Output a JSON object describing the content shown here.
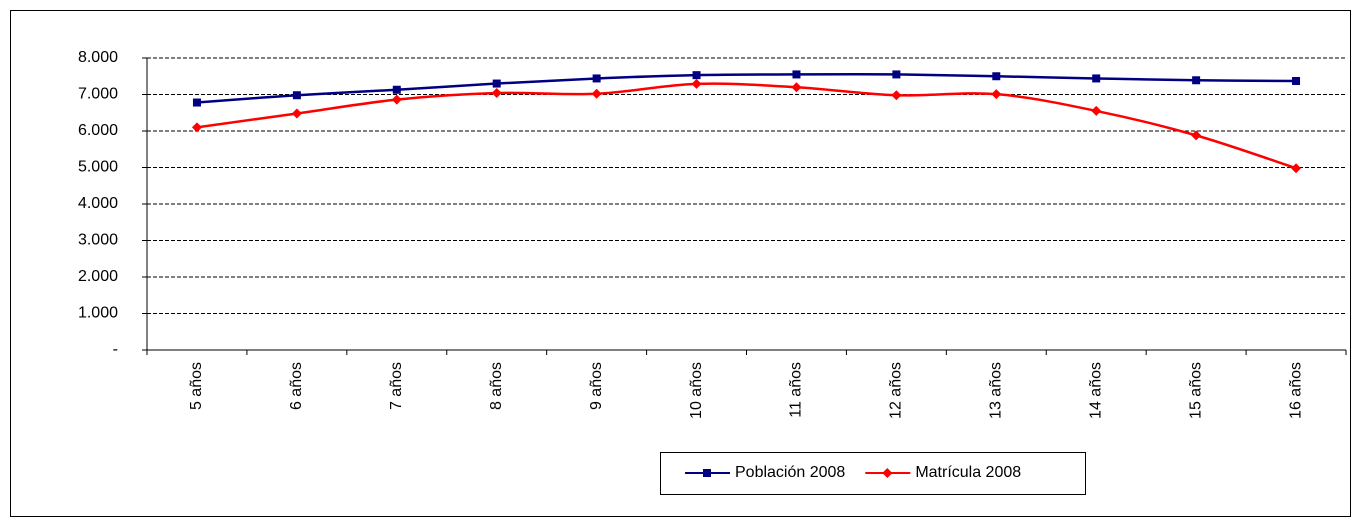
{
  "chart_data": {
    "type": "line",
    "categories": [
      "5 años",
      "6 años",
      "7 años",
      "8 años",
      "9 años",
      "10 años",
      "11 años",
      "12 años",
      "13 años",
      "14 años",
      "15 años",
      "16 años"
    ],
    "series": [
      {
        "name": "Población 2008",
        "color": "#000080",
        "marker": "square",
        "values": [
          6780,
          6980,
          7130,
          7300,
          7440,
          7530,
          7550,
          7550,
          7500,
          7440,
          7390,
          7370
        ]
      },
      {
        "name": "Matrícula 2008",
        "color": "#ff0000",
        "marker": "diamond",
        "values": [
          6100,
          6480,
          6860,
          7040,
          7020,
          7290,
          7200,
          6980,
          7010,
          6550,
          5880,
          4980
        ]
      }
    ],
    "ylim": [
      0,
      8000
    ],
    "yticks": [
      {
        "value": 0,
        "label": "-"
      },
      {
        "value": 1000,
        "label": "1.000"
      },
      {
        "value": 2000,
        "label": "2.000"
      },
      {
        "value": 3000,
        "label": "3.000"
      },
      {
        "value": 4000,
        "label": "4.000"
      },
      {
        "value": 5000,
        "label": "5.000"
      },
      {
        "value": 6000,
        "label": "6.000"
      },
      {
        "value": 7000,
        "label": "7.000"
      },
      {
        "value": 8000,
        "label": "8.000"
      }
    ],
    "grid": true,
    "smooth": true,
    "legend": "bottom"
  }
}
